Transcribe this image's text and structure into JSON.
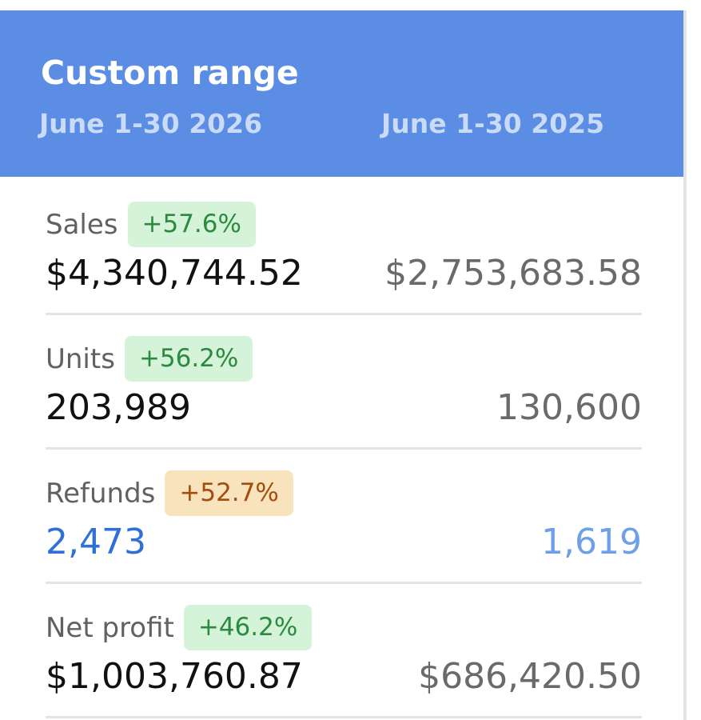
{
  "header": {
    "title": "Custom range",
    "period_current": "June 1-30 2026",
    "period_previous": "June 1-30 2025",
    "background_color": "#5a8de3"
  },
  "metrics": [
    {
      "label": "Sales",
      "change": "+57.6%",
      "change_status": "positive",
      "current_value": "$4,340,744.52",
      "previous_value": "$2,753,683.58"
    },
    {
      "label": "Units",
      "change": "+56.2%",
      "change_status": "positive",
      "current_value": "203,989",
      "previous_value": "130,600"
    },
    {
      "label": "Refunds",
      "change": "+52.7%",
      "change_status": "warning",
      "current_value": "2,473",
      "previous_value": "1,619"
    },
    {
      "label": "Net profit",
      "change": "+46.2%",
      "change_status": "positive",
      "current_value": "$1,003,760.87",
      "previous_value": "$686,420.50"
    }
  ],
  "colors": {
    "positive_badge_bg": "#d4f3d8",
    "positive_badge_text": "#2c8a40",
    "warning_badge_bg": "#f9e3bd",
    "warning_badge_text": "#a44c0d",
    "link_value": "#2f6fd8"
  }
}
